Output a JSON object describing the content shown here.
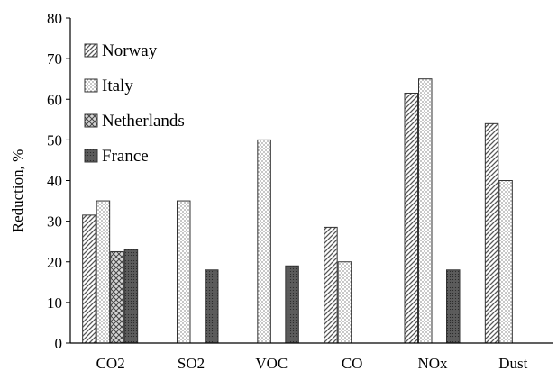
{
  "chart_data": {
    "type": "bar",
    "title": "",
    "xlabel": "",
    "ylabel": "Reduction, %",
    "ylim": [
      0,
      80
    ],
    "yticks": [
      0,
      10,
      20,
      30,
      40,
      50,
      60,
      70,
      80
    ],
    "grid": false,
    "legend_position": "top-left",
    "categories": [
      "CO2",
      "SO2",
      "VOC",
      "CO",
      "NOx",
      "Dust"
    ],
    "series": [
      {
        "name": "Norway",
        "pattern": "diagonal-hatch",
        "values": [
          31.5,
          null,
          null,
          28.5,
          61.5,
          54
        ]
      },
      {
        "name": "Italy",
        "pattern": "dotted",
        "values": [
          35,
          35,
          50,
          20,
          65,
          40
        ]
      },
      {
        "name": "Netherlands",
        "pattern": "cross-hatch",
        "values": [
          22.5,
          null,
          null,
          null,
          null,
          null
        ]
      },
      {
        "name": "France",
        "pattern": "dark-dotted",
        "values": [
          23,
          18,
          19,
          null,
          18,
          null
        ]
      }
    ]
  }
}
